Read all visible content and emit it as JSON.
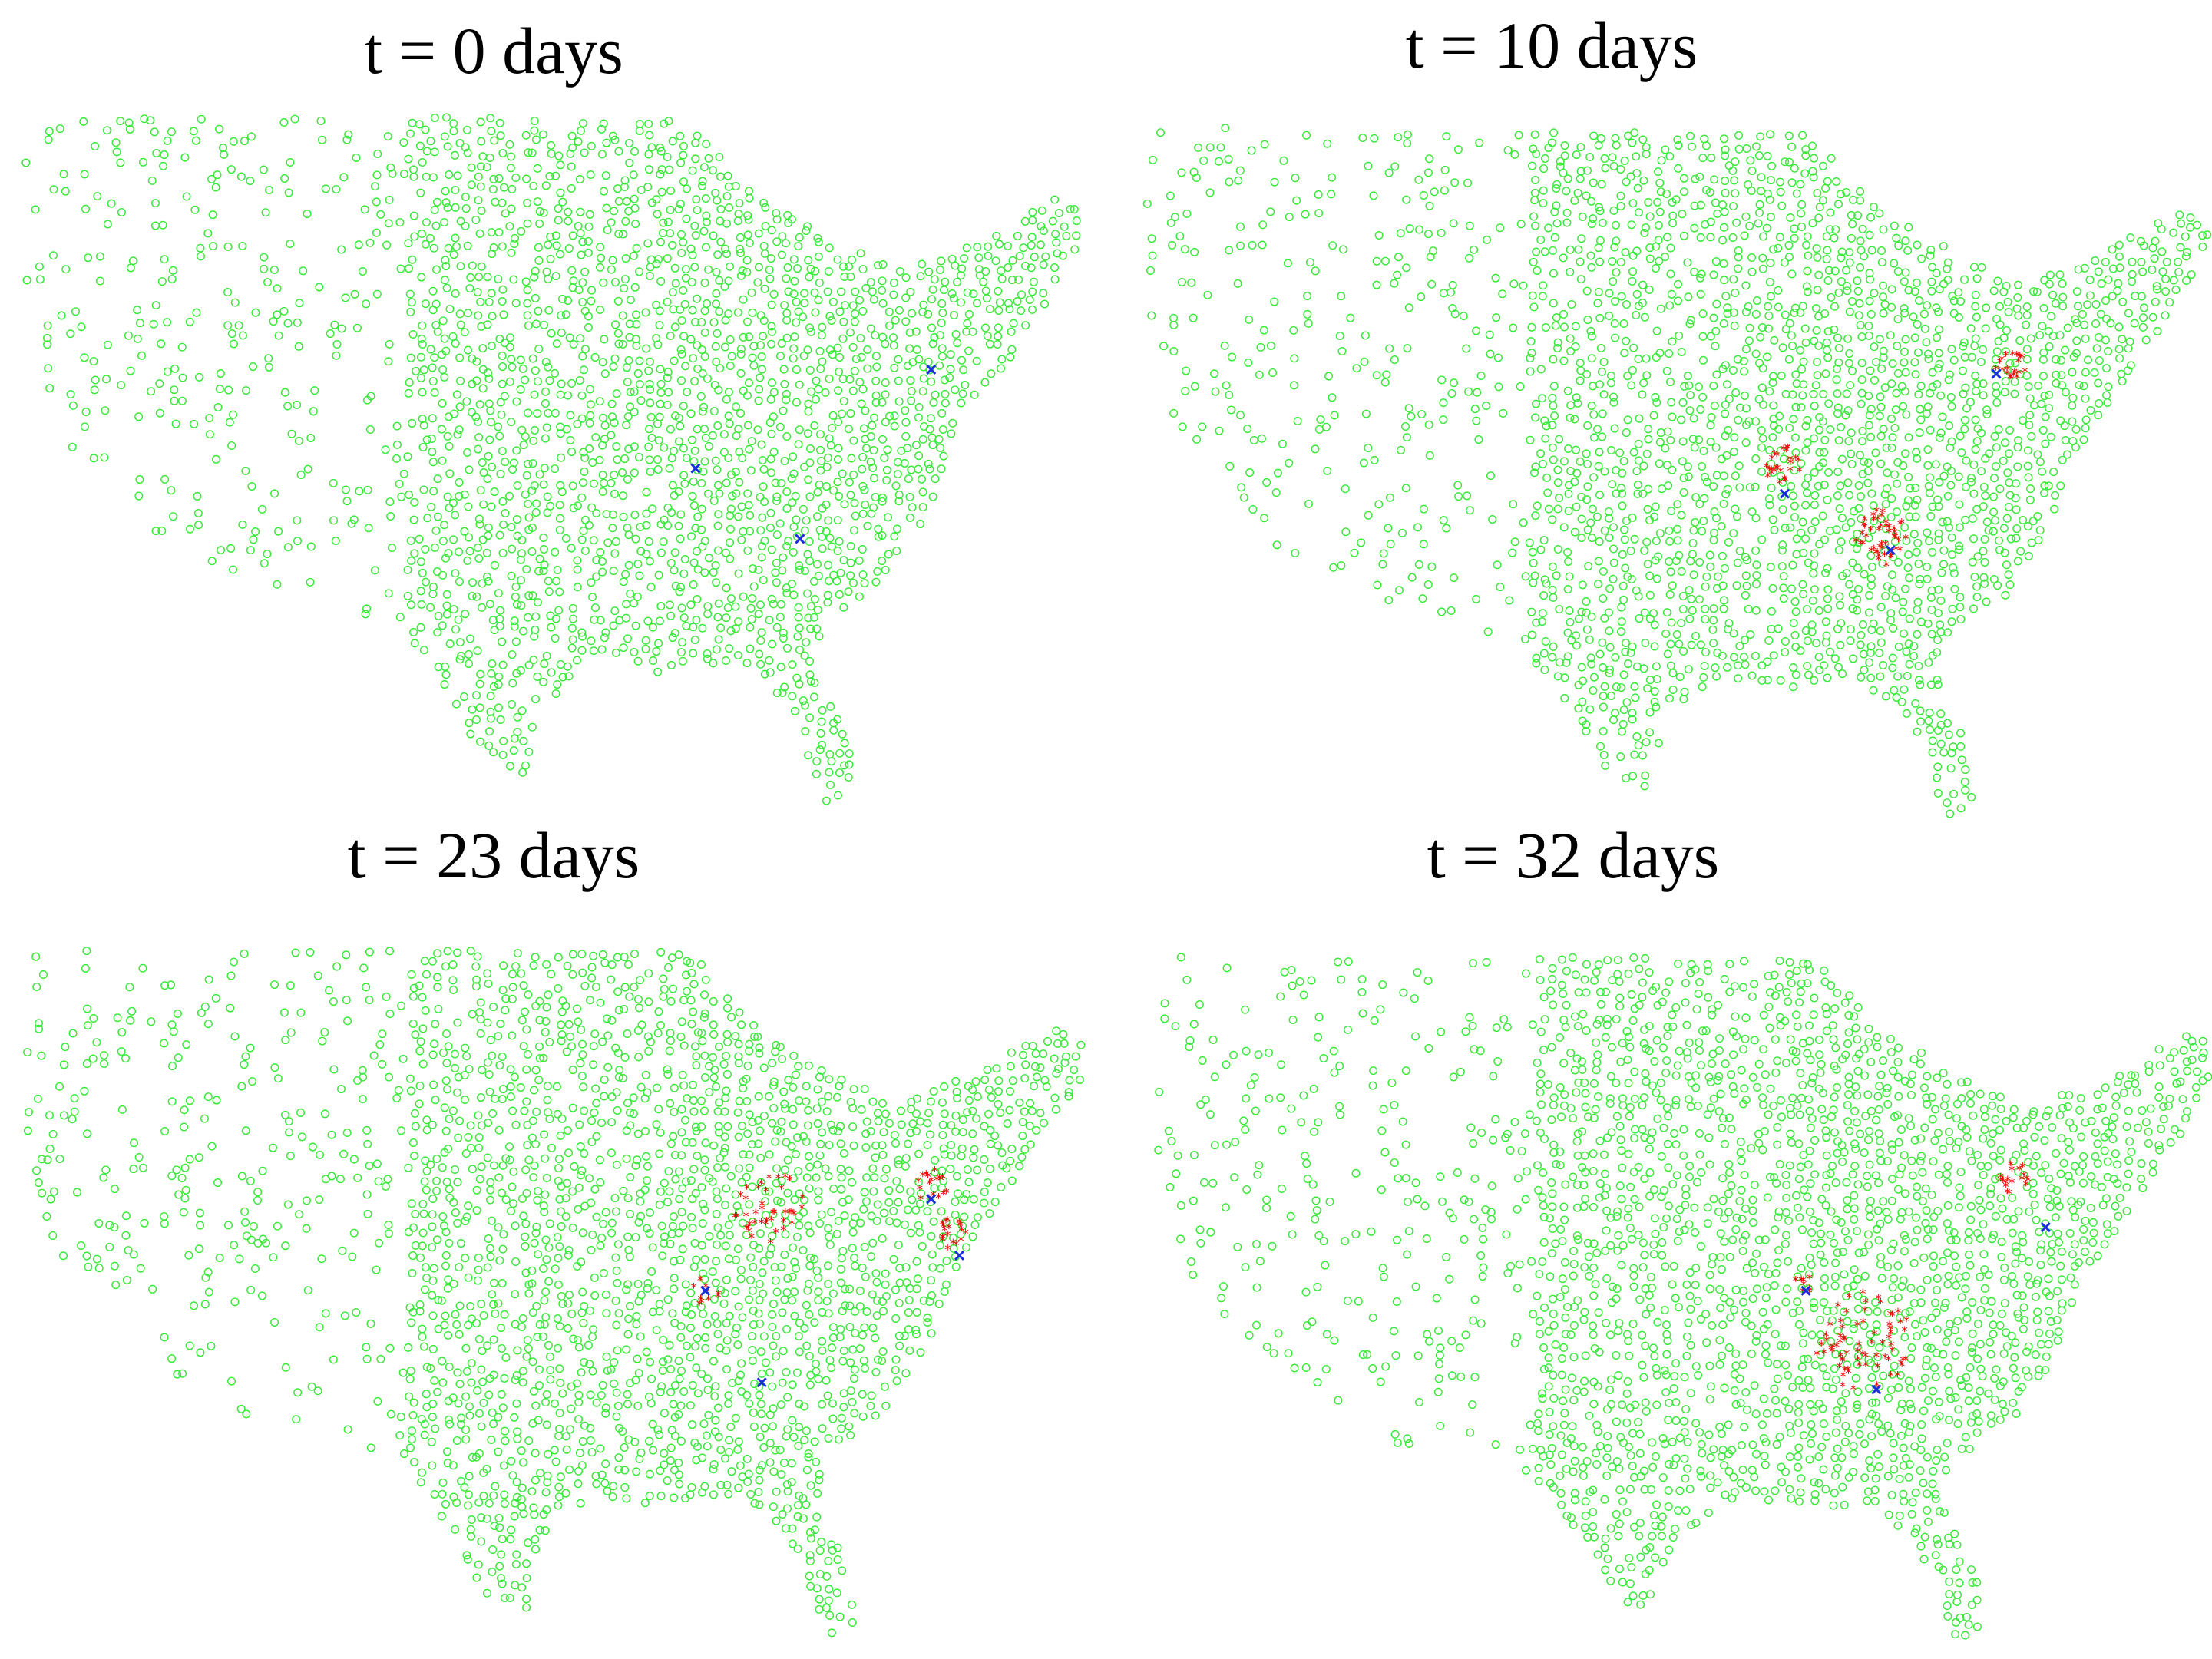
{
  "panels": [
    {
      "title": "t = 0 days"
    },
    {
      "title": "t = 10 days"
    },
    {
      "title": "t = 23 days"
    },
    {
      "title": "t = 32 days"
    }
  ]
}
